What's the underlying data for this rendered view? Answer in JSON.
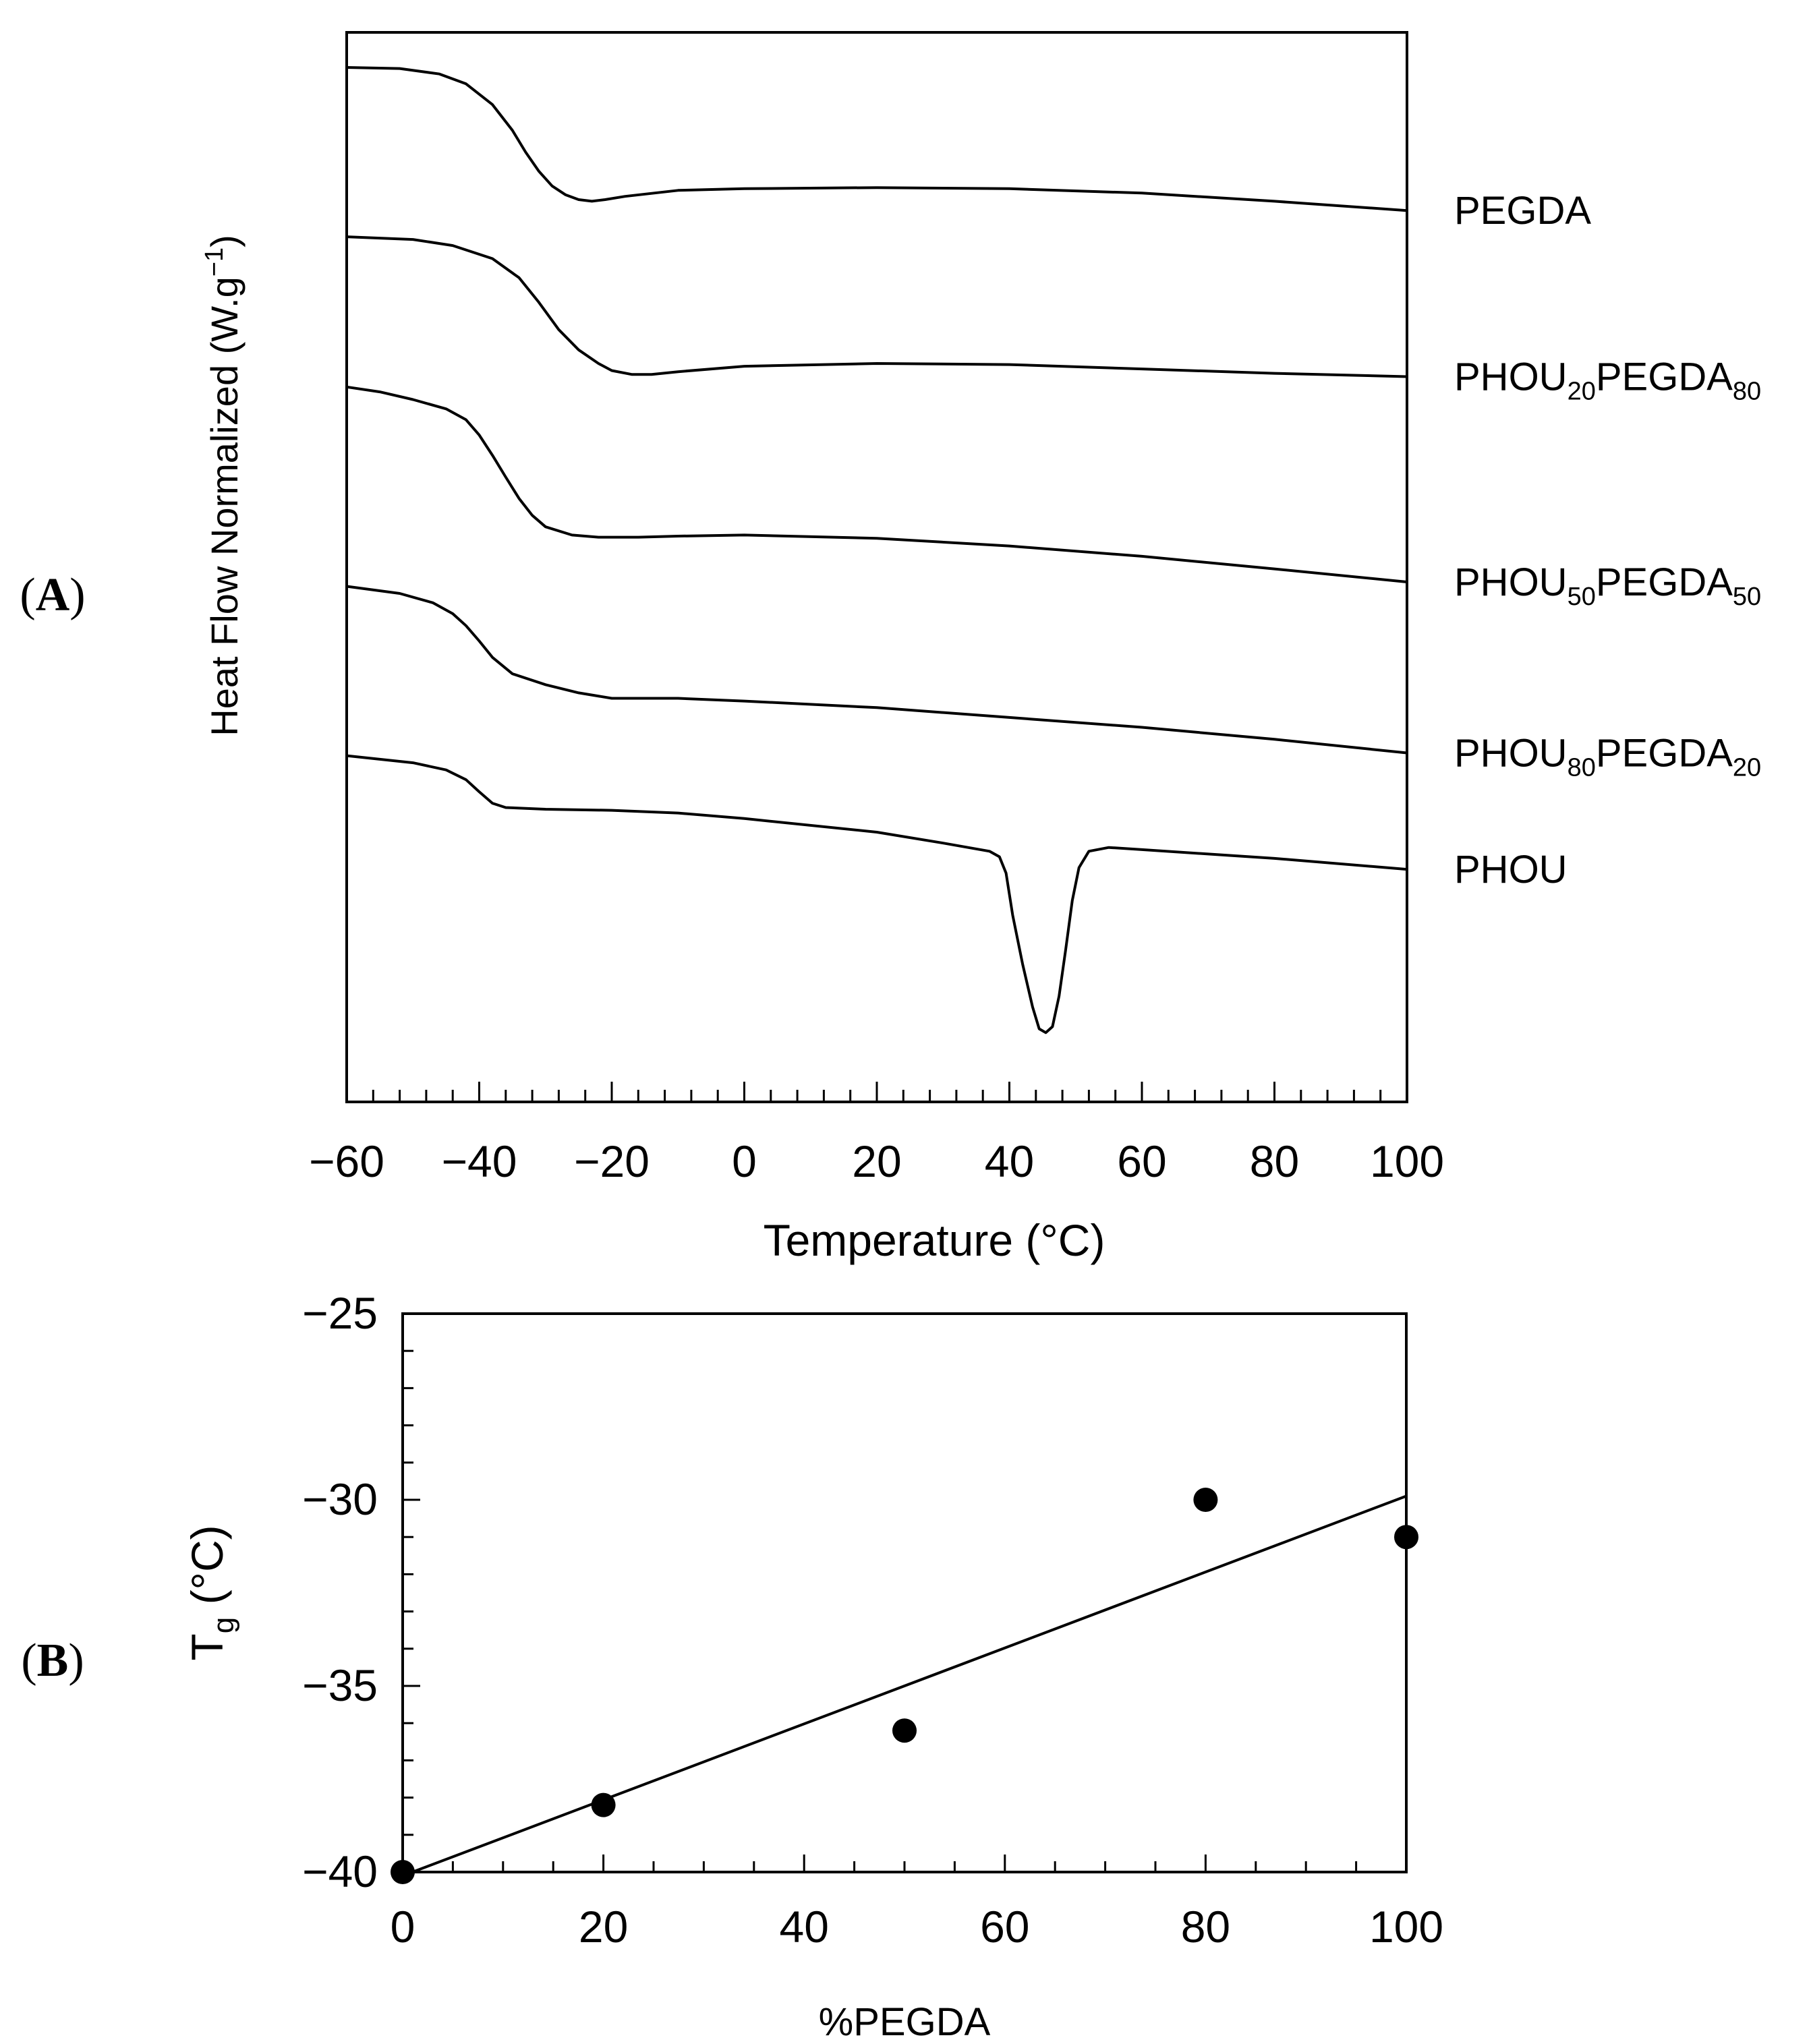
{
  "chart_data": [
    {
      "panel": "A",
      "type": "line",
      "xlabel": "Temperature (°C)",
      "ylabel": "Heat Flow Normalized (W.g",
      "ylabel_sup": "−1",
      "ylabel_close": ")",
      "xlim": [
        -60,
        100
      ],
      "x_ticks": [
        -60,
        -40,
        -20,
        0,
        20,
        40,
        60,
        80,
        100
      ],
      "x_tick_labels": [
        "−60",
        "−40",
        "−20",
        "0",
        "20",
        "40",
        "60",
        "80",
        "100"
      ],
      "y_units": "arbitrary (curves vertically offset, no y tick labels)",
      "series": [
        {
          "name": "PEGDA",
          "label_main": "PEGDA",
          "label_sub1": "",
          "label_mid": "",
          "label_sub2": "",
          "x": [
            -60,
            -52,
            -46,
            -42,
            -38,
            -35,
            -33,
            -31,
            -29,
            -27,
            -25,
            -23,
            -21,
            -18,
            -10,
            0,
            20,
            40,
            60,
            80,
            100
          ],
          "y": [
            0,
            -0.2,
            -1.2,
            -3,
            -6.8,
            -11.5,
            -15.5,
            -19,
            -21.7,
            -23.3,
            -24.2,
            -24.5,
            -24.2,
            -23.6,
            -22.5,
            -22.2,
            -22,
            -22.2,
            -23,
            -24.5,
            -26.2
          ]
        },
        {
          "name": "PHOU20PEGDA80",
          "label_main": "PHOU",
          "label_sub1": "20",
          "label_mid": "PEGDA",
          "label_sub2": "80",
          "x": [
            -60,
            -50,
            -44,
            -38,
            -34,
            -31,
            -28,
            -25,
            -22,
            -20,
            -17,
            -14,
            -10,
            0,
            20,
            40,
            60,
            80,
            100
          ],
          "y": [
            -31,
            -31.5,
            -32.6,
            -35,
            -38.5,
            -43,
            -48,
            -51.7,
            -54.2,
            -55.5,
            -56.2,
            -56.2,
            -55.7,
            -54.7,
            -54.2,
            -54.4,
            -55.2,
            -56,
            -56.6
          ]
        },
        {
          "name": "PHOU50PEGDA50",
          "label_main": "PHOU",
          "label_sub1": "50",
          "label_mid": "PEGDA",
          "label_sub2": "50",
          "x": [
            -60,
            -55,
            -50,
            -45,
            -42,
            -40,
            -38,
            -36,
            -34,
            -32,
            -30,
            -26,
            -22,
            -16,
            -10,
            0,
            20,
            40,
            60,
            80,
            100
          ],
          "y": [
            -58.5,
            -59.4,
            -60.8,
            -62.5,
            -64.5,
            -67.3,
            -71,
            -75,
            -78.9,
            -82,
            -84.1,
            -85.6,
            -86,
            -86,
            -85.8,
            -85.6,
            -86.2,
            -87.6,
            -89.5,
            -91.8,
            -94.2
          ]
        },
        {
          "name": "PHOU80PEGDA20",
          "label_main": "PHOU",
          "label_sub1": "80",
          "label_mid": "PEGDA",
          "label_sub2": "20",
          "x": [
            -60,
            -52,
            -47,
            -44,
            -42,
            -40,
            -38,
            -35,
            -30,
            -25,
            -20,
            -10,
            0,
            20,
            40,
            60,
            80,
            100
          ],
          "y": [
            -95,
            -96.3,
            -98,
            -100,
            -102.2,
            -105,
            -108,
            -111,
            -113,
            -114.5,
            -115.5,
            -115.5,
            -116,
            -117.2,
            -119,
            -120.8,
            -123,
            -125.5
          ]
        },
        {
          "name": "PHOU",
          "label_main": "PHOU",
          "label_sub1": "",
          "label_mid": "",
          "label_sub2": "",
          "x": [
            -60,
            -50,
            -45,
            -42,
            -40,
            -38,
            -36,
            -30,
            -20,
            -10,
            0,
            20,
            30,
            37,
            38.5,
            39.5,
            40.5,
            42,
            43.5,
            44.5,
            45.5,
            46.5,
            47.5,
            48.5,
            49.5,
            50.5,
            52,
            55,
            60,
            80,
            100
          ],
          "y": [
            -126,
            -127.3,
            -128.6,
            -130.4,
            -132.6,
            -134.7,
            -135.5,
            -135.8,
            -136,
            -136.5,
            -137.5,
            -140,
            -142,
            -143.5,
            -144.5,
            -147.5,
            -155.2,
            -164.2,
            -172,
            -176,
            -176.7,
            -175.6,
            -170,
            -161.5,
            -152.5,
            -146.5,
            -143.5,
            -142.8,
            -143.2,
            -144.8,
            -146.8
          ]
        }
      ]
    },
    {
      "panel": "B",
      "type": "scatter",
      "xlabel": "%PEGDA",
      "ylabel_main": "T",
      "ylabel_sub": "g",
      "ylabel_rest": " (°C)",
      "xlim": [
        0,
        100
      ],
      "ylim": [
        -40,
        -25
      ],
      "x_ticks": [
        0,
        20,
        40,
        60,
        80,
        100
      ],
      "x_tick_labels": [
        "0",
        "20",
        "40",
        "60",
        "80",
        "100"
      ],
      "y_ticks": [
        -25,
        -30,
        -35,
        -40
      ],
      "y_tick_labels": [
        "−25",
        "−30",
        "−35",
        "−40"
      ],
      "points": {
        "x": [
          0,
          20,
          50,
          80,
          100
        ],
        "y": [
          -40,
          -38.2,
          -36.2,
          -30,
          -31
        ]
      },
      "fit_line": {
        "x": [
          0,
          100
        ],
        "y": [
          -40.1,
          -29.9
        ]
      }
    }
  ],
  "panel_labels": {
    "a_open": "(",
    "a": "A",
    "a_close": ")",
    "b_open": "(",
    "b": "B",
    "b_close": ")"
  }
}
